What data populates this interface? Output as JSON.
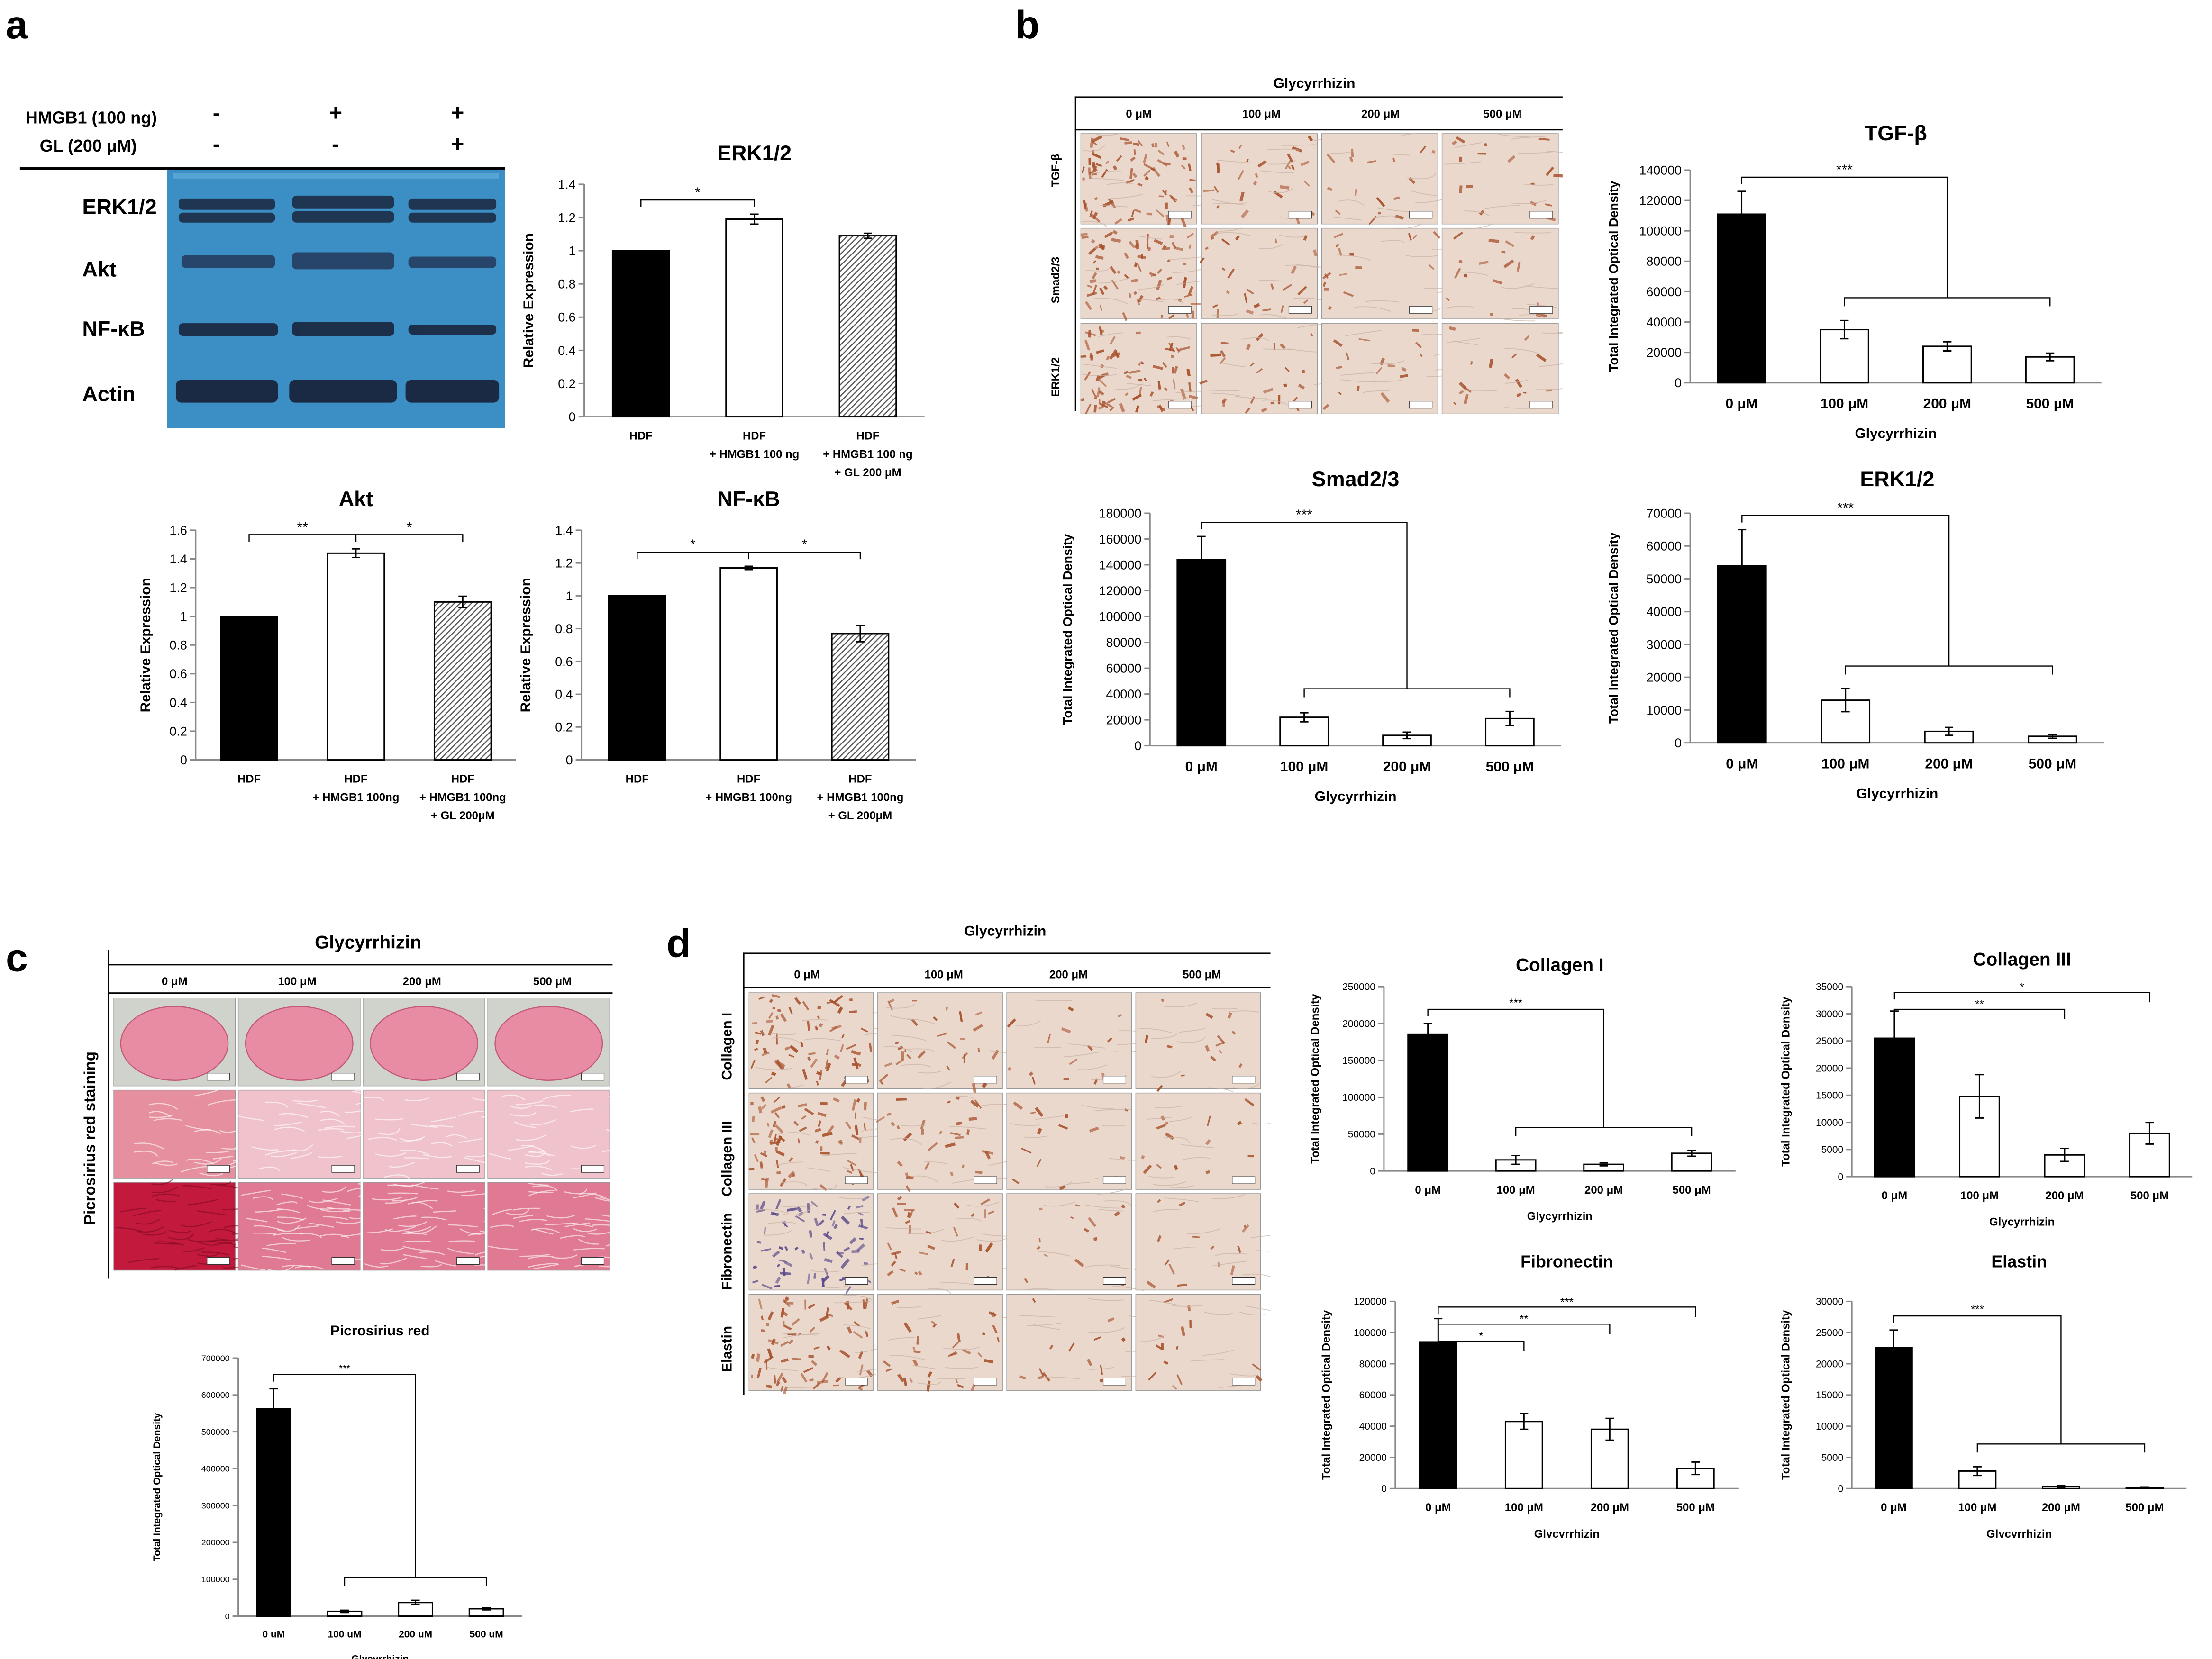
{
  "panels": {
    "a": "a",
    "b": "b",
    "c": "c",
    "d": "d"
  },
  "panel_a": {
    "row_labels": [
      "HMGB1 (100 ng)",
      "GL (200 μM)"
    ],
    "row_signs": [
      [
        "-",
        "+",
        "+"
      ],
      [
        "-",
        "-",
        "+"
      ]
    ],
    "band_labels": [
      "ERK1/2",
      "Akt",
      "NF-κB",
      "Actin"
    ]
  },
  "panel_b": {
    "treatment": "Glycyrrhizin",
    "concentrations": [
      "0 μM",
      "100 μM",
      "200 μM",
      "500 μM"
    ],
    "row_labels": [
      "TGF-β",
      "Smad2/3",
      "ERK1/2"
    ]
  },
  "panel_c": {
    "treatment": "Glycyrrhizin",
    "concentrations": [
      "0 μM",
      "100 μM",
      "200 μM",
      "500 μM"
    ],
    "side_label": "Picrosirius red staining"
  },
  "panel_d": {
    "treatment": "Glycyrrhizin",
    "concentrations": [
      "0 μM",
      "100 μM",
      "200 μM",
      "500 μM"
    ],
    "row_labels": [
      "Collagen I",
      "Collagen III",
      "Fibronectin",
      "Elastin"
    ]
  },
  "colors": {
    "membrane": "#3b8fc4",
    "band": "#1d2f4a",
    "tissue_bg": "#ead8cc",
    "stain": "#a8512c",
    "picro_pink": "#e88ca4",
    "picro_red": "#c2193c",
    "solid_bar": "#000000"
  },
  "chart_data": [
    {
      "id": "a_erk",
      "type": "bar",
      "title": "ERK1/2",
      "xlabel": "",
      "ylabel": "Relative Expression",
      "categories": [
        [
          "HDF"
        ],
        [
          "HDF",
          "+ HMGB1 100 ng"
        ],
        [
          "HDF",
          "+ HMGB1 100 ng",
          "+ GL 200 μM"
        ]
      ],
      "values": [
        1.0,
        1.19,
        1.09
      ],
      "errors": [
        0,
        0.03,
        0.015
      ],
      "styles": [
        "black",
        "white",
        "hatch"
      ],
      "ylim": [
        0,
        1.4
      ],
      "ticks": [
        0,
        0.2,
        0.4,
        0.6,
        0.8,
        1,
        1.2,
        1.4
      ],
      "brackets": [
        {
          "from": 0,
          "to": 1,
          "label": "*"
        }
      ]
    },
    {
      "id": "a_akt",
      "type": "bar",
      "title": "Akt",
      "xlabel": "",
      "ylabel": "Relative Expression",
      "categories": [
        [
          "HDF"
        ],
        [
          "HDF",
          "+ HMGB1 100ng"
        ],
        [
          "HDF",
          "+ HMGB1 100ng",
          "+ GL 200μM"
        ]
      ],
      "values": [
        1.0,
        1.44,
        1.1
      ],
      "errors": [
        0,
        0.03,
        0.04
      ],
      "styles": [
        "black",
        "white",
        "hatch"
      ],
      "ylim": [
        0,
        1.6
      ],
      "ticks": [
        0,
        0.2,
        0.4,
        0.6,
        0.8,
        1,
        1.2,
        1.4,
        1.6
      ],
      "brackets": [
        {
          "from": 0,
          "to": 1,
          "label": "**"
        },
        {
          "from": 1,
          "to": 2,
          "label": "*"
        }
      ]
    },
    {
      "id": "a_nfkb",
      "type": "bar",
      "title": "NF-κB",
      "xlabel": "",
      "ylabel": "Relative Expression",
      "categories": [
        [
          "HDF"
        ],
        [
          "HDF",
          "+ HMGB1 100ng"
        ],
        [
          "HDF",
          "+ HMGB1 100ng",
          "+ GL 200μM"
        ]
      ],
      "values": [
        1.0,
        1.17,
        0.77
      ],
      "errors": [
        0,
        0.01,
        0.05
      ],
      "styles": [
        "black",
        "white",
        "hatch"
      ],
      "ylim": [
        0,
        1.4
      ],
      "ticks": [
        0,
        0.2,
        0.4,
        0.6,
        0.8,
        1,
        1.2,
        1.4
      ],
      "brackets": [
        {
          "from": 0,
          "to": 1,
          "label": "*"
        },
        {
          "from": 1,
          "to": 2,
          "label": "*"
        }
      ]
    },
    {
      "id": "b_tgf",
      "type": "bar",
      "title": "TGF-β",
      "xlabel": "Glycyrrhizin",
      "ylabel": "Total Integrated Optical Density",
      "categories": [
        [
          "0 μM"
        ],
        [
          "100 μM"
        ],
        [
          "200 μM"
        ],
        [
          "500 μM"
        ]
      ],
      "values": [
        111000,
        35000,
        24000,
        17000
      ],
      "errors": [
        15000,
        6000,
        3000,
        2500
      ],
      "styles": [
        "black",
        "white",
        "white",
        "white"
      ],
      "ylim": [
        0,
        140000
      ],
      "ticks": [
        0,
        20000,
        40000,
        60000,
        80000,
        100000,
        120000,
        140000
      ],
      "group_bracket": {
        "label": "***"
      }
    },
    {
      "id": "b_smad",
      "type": "bar",
      "title": "Smad2/3",
      "xlabel": "Glycyrrhizin",
      "ylabel": "Total Integrated Optical Density",
      "categories": [
        [
          "0 μM"
        ],
        [
          "100 μM"
        ],
        [
          "200 μM"
        ],
        [
          "500 μM"
        ]
      ],
      "values": [
        144000,
        22000,
        8000,
        21000
      ],
      "errors": [
        18000,
        3500,
        2500,
        5500
      ],
      "styles": [
        "black",
        "white",
        "white",
        "white"
      ],
      "ylim": [
        0,
        180000
      ],
      "ticks": [
        0,
        20000,
        40000,
        60000,
        80000,
        100000,
        120000,
        140000,
        160000,
        180000
      ],
      "group_bracket": {
        "label": "***"
      }
    },
    {
      "id": "b_erk",
      "type": "bar",
      "title": "ERK1/2",
      "xlabel": "Glycyrrhizin",
      "ylabel": "Total Integrated Optical Density",
      "categories": [
        [
          "0 μM"
        ],
        [
          "100 μM"
        ],
        [
          "200 μM"
        ],
        [
          "500 μM"
        ]
      ],
      "values": [
        54000,
        13000,
        3500,
        2000
      ],
      "errors": [
        11000,
        3500,
        1200,
        600
      ],
      "styles": [
        "black",
        "white",
        "white",
        "white"
      ],
      "ylim": [
        0,
        70000
      ],
      "ticks": [
        0,
        10000,
        20000,
        30000,
        40000,
        50000,
        60000,
        70000
      ],
      "group_bracket": {
        "label": "***"
      }
    },
    {
      "id": "c_picro",
      "type": "bar",
      "title": "Picrosirius red",
      "xlabel": "Glycyrrhizin",
      "ylabel": "Total Integrated Optical Density",
      "categories": [
        [
          "0 uM"
        ],
        [
          "100 uM"
        ],
        [
          "200 uM"
        ],
        [
          "500 uM"
        ]
      ],
      "values": [
        562000,
        13000,
        37000,
        20000
      ],
      "errors": [
        55000,
        3000,
        6000,
        3000
      ],
      "styles": [
        "black",
        "white",
        "white",
        "white"
      ],
      "ylim": [
        0,
        700000
      ],
      "ticks": [
        0,
        100000,
        200000,
        300000,
        400000,
        500000,
        600000,
        700000
      ],
      "group_bracket": {
        "label": "***"
      }
    },
    {
      "id": "d_col1",
      "type": "bar",
      "title": "Collagen I",
      "xlabel": "Glycyrrhizin",
      "ylabel": "Total Integrated Optical Density",
      "categories": [
        [
          "0 μM"
        ],
        [
          "100 μM"
        ],
        [
          "200 μM"
        ],
        [
          "500 μM"
        ]
      ],
      "values": [
        185000,
        15000,
        9000,
        24000
      ],
      "errors": [
        15000,
        6000,
        2000,
        4000
      ],
      "styles": [
        "black",
        "white",
        "white",
        "white"
      ],
      "ylim": [
        0,
        250000
      ],
      "ticks": [
        0,
        50000,
        100000,
        150000,
        200000,
        250000
      ],
      "group_bracket": {
        "label": "***"
      }
    },
    {
      "id": "d_col3",
      "type": "bar",
      "title": "Collagen III",
      "xlabel": "Glycyrrhizin",
      "ylabel": "Total Integrated Optical Density",
      "categories": [
        [
          "0 μM"
        ],
        [
          "100 μM"
        ],
        [
          "200 μM"
        ],
        [
          "500 μM"
        ]
      ],
      "values": [
        25500,
        14800,
        4000,
        8000
      ],
      "errors": [
        5000,
        4000,
        1200,
        2000
      ],
      "styles": [
        "black",
        "white",
        "white",
        "white"
      ],
      "ylim": [
        0,
        35000
      ],
      "ticks": [
        0,
        5000,
        10000,
        15000,
        20000,
        25000,
        30000,
        35000
      ],
      "brackets_from_first": [
        {
          "to": 3,
          "label": "*"
        },
        {
          "to": 2,
          "label": "**"
        }
      ]
    },
    {
      "id": "d_fn",
      "type": "bar",
      "title": "Fibronectin",
      "xlabel": "Glycyrrhizin",
      "ylabel": "Total Integrated Optical Density",
      "categories": [
        [
          "0 μM"
        ],
        [
          "100 μM"
        ],
        [
          "200 μM"
        ],
        [
          "500 μM"
        ]
      ],
      "values": [
        94000,
        43000,
        38000,
        13000
      ],
      "errors": [
        15000,
        5000,
        7000,
        4000
      ],
      "styles": [
        "black",
        "white",
        "white",
        "white"
      ],
      "ylim": [
        0,
        120000
      ],
      "ticks": [
        0,
        20000,
        40000,
        60000,
        80000,
        100000,
        120000
      ],
      "brackets_from_first": [
        {
          "to": 3,
          "label": "***"
        },
        {
          "to": 2,
          "label": "**"
        },
        {
          "to": 1,
          "label": "*"
        }
      ]
    },
    {
      "id": "d_el",
      "type": "bar",
      "title": "Elastin",
      "xlabel": "Glycyrrhizin",
      "ylabel": "Total Integrated Optical Density",
      "categories": [
        [
          "0 μM"
        ],
        [
          "100 μM"
        ],
        [
          "200 μM"
        ],
        [
          "500 μM"
        ]
      ],
      "values": [
        22600,
        2800,
        300,
        150
      ],
      "errors": [
        2800,
        700,
        200,
        100
      ],
      "styles": [
        "black",
        "white",
        "white",
        "white"
      ],
      "ylim": [
        0,
        30000
      ],
      "ticks": [
        0,
        5000,
        10000,
        15000,
        20000,
        25000,
        30000
      ],
      "group_bracket": {
        "label": "***"
      }
    }
  ]
}
